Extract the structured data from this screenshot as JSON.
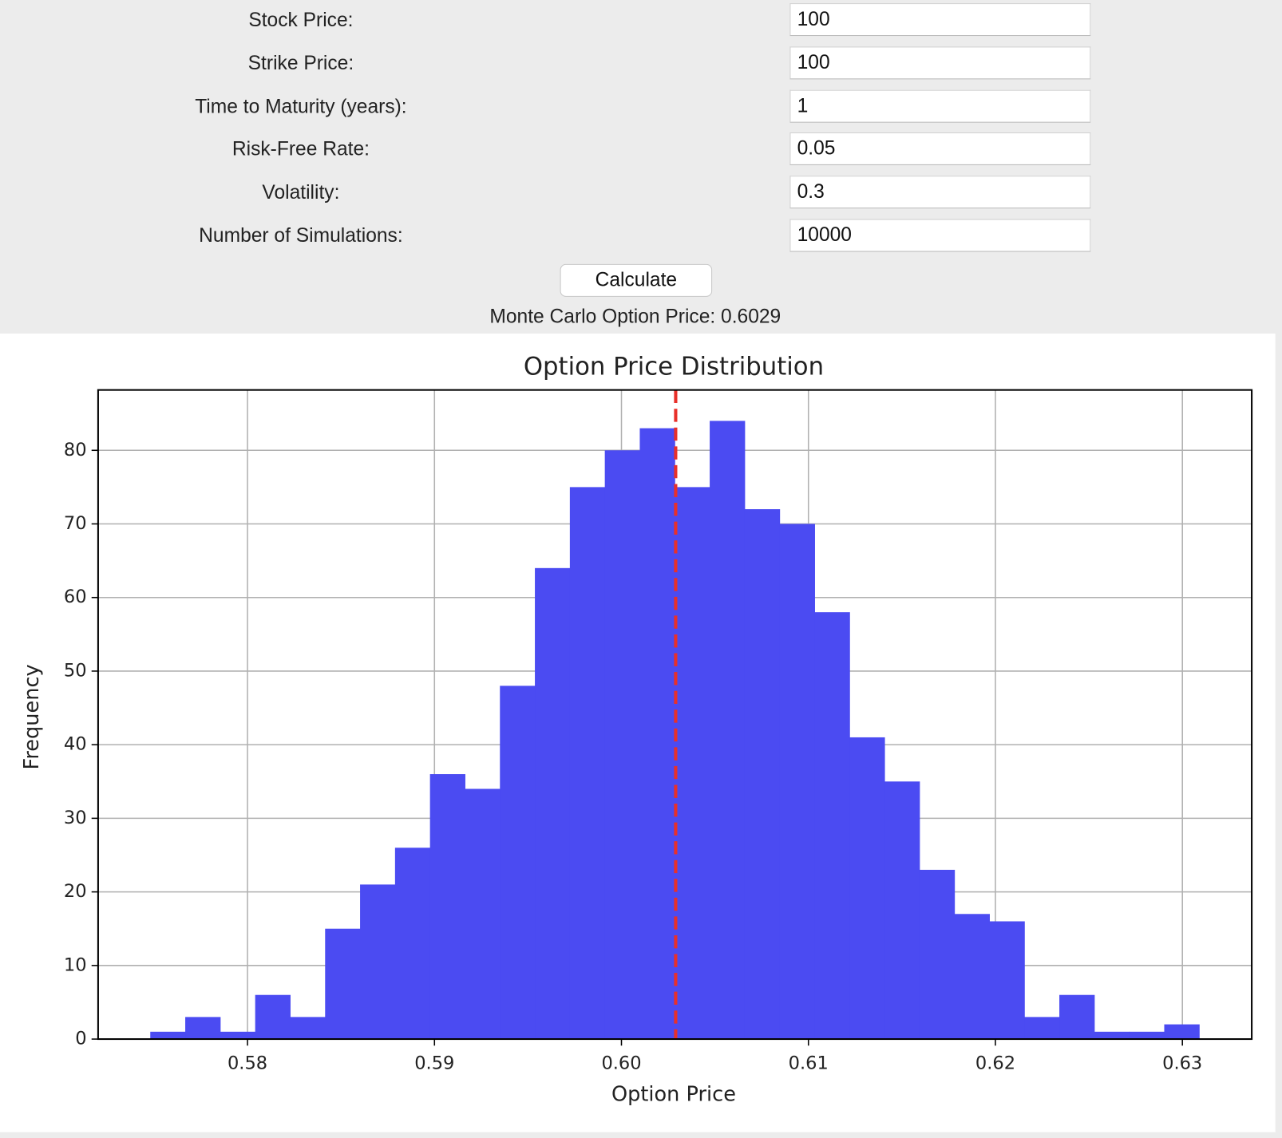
{
  "form": {
    "fields": [
      {
        "label": "Stock Price:",
        "value": "100"
      },
      {
        "label": "Strike Price:",
        "value": "100"
      },
      {
        "label": "Time to Maturity (years):",
        "value": "1"
      },
      {
        "label": "Risk-Free Rate:",
        "value": "0.05"
      },
      {
        "label": "Volatility:",
        "value": "0.3"
      },
      {
        "label": "Number of Simulations:",
        "value": "10000"
      }
    ],
    "button": "Calculate",
    "result": "Monte Carlo Option Price: 0.6029"
  },
  "chart_data": {
    "type": "histogram",
    "title": "Option Price Distribution",
    "x_label": "Option Price",
    "y_label": "Frequency",
    "bins": [
      0.5748,
      0.57667,
      0.57854,
      0.58041,
      0.58228,
      0.58415,
      0.58602,
      0.58789,
      0.58976,
      0.59163,
      0.5935,
      0.59537,
      0.59724,
      0.59911,
      0.60098,
      0.60285,
      0.60472,
      0.60659,
      0.60846,
      0.61033,
      0.6122,
      0.61407,
      0.61594,
      0.61781,
      0.61968,
      0.62155,
      0.62342,
      0.62529,
      0.62716,
      0.62903,
      0.6309
    ],
    "values": [
      1,
      3,
      1,
      6,
      3,
      15,
      21,
      26,
      36,
      34,
      48,
      64,
      75,
      80,
      83,
      75,
      84,
      72,
      70,
      58,
      41,
      35,
      23,
      17,
      16,
      3,
      6,
      1,
      1,
      2
    ],
    "color": "#4b4bf2",
    "mean_line": 0.6029,
    "mean_color": "#e8302a",
    "xlim": [
      0.57201,
      0.63371
    ],
    "xticks": [
      0.58,
      0.59,
      {
        "value": 0.6,
        "label": "0.60"
      },
      0.61,
      0.62,
      0.63
    ],
    "ylim": [
      0,
      88.2
    ],
    "yticks": [
      0,
      10,
      20,
      30,
      40,
      50,
      60,
      70,
      80
    ],
    "grid": true
  }
}
